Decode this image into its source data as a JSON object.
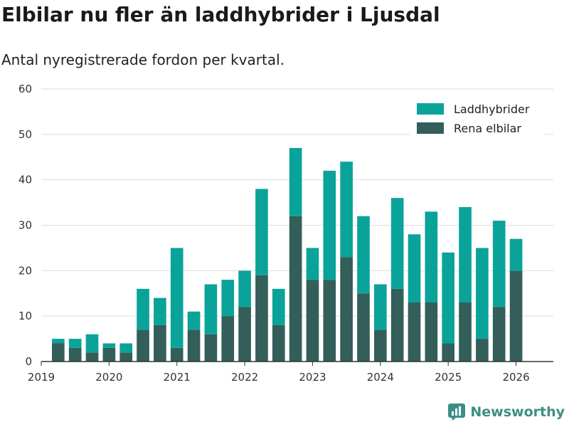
{
  "chart_data": {
    "type": "bar",
    "stacked": true,
    "title": "Elbilar nu fler än laddhybrider i Ljusdal",
    "subtitle": "Antal nyregistrerade fordon per kvartal.",
    "xlabel": "",
    "ylabel": "",
    "ylim": [
      0,
      60
    ],
    "yticks": [
      0,
      10,
      20,
      30,
      40,
      50,
      60
    ],
    "xlim": [
      2019,
      2026.2
    ],
    "xticks": [
      2019,
      2020,
      2021,
      2022,
      2023,
      2024,
      2025,
      2026
    ],
    "grid": true,
    "legend": "top-right",
    "x": [
      2019.25,
      2019.5,
      2019.75,
      2020.0,
      2020.25,
      2020.5,
      2020.75,
      2021.0,
      2021.25,
      2021.5,
      2021.75,
      2022.0,
      2022.25,
      2022.5,
      2022.75,
      2023.0,
      2023.25,
      2023.5,
      2023.75,
      2024.0,
      2024.25,
      2024.5,
      2024.75,
      2025.0,
      2025.25,
      2025.5,
      2025.75,
      2026.0
    ],
    "series": [
      {
        "name": "Rena elbilar",
        "color": "#335e59",
        "values": [
          4,
          3,
          2,
          3,
          2,
          7,
          8,
          3,
          7,
          6,
          10,
          12,
          19,
          8,
          32,
          18,
          18,
          23,
          15,
          7,
          16,
          13,
          13,
          4,
          13,
          5,
          12,
          20
        ]
      },
      {
        "name": "Laddhybrider",
        "color": "#0aa39a",
        "values": [
          1,
          2,
          4,
          1,
          2,
          9,
          6,
          22,
          4,
          11,
          8,
          8,
          19,
          8,
          15,
          7,
          24,
          21,
          17,
          10,
          20,
          15,
          20,
          20,
          21,
          20,
          19,
          7
        ]
      }
    ]
  },
  "brand": {
    "name": "Newsworthy",
    "color": "#3d8f86"
  }
}
